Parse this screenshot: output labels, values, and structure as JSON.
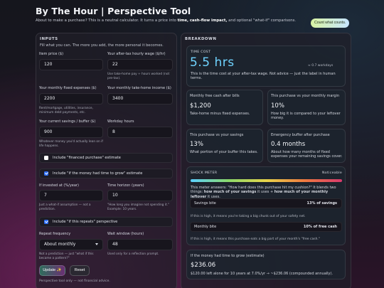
{
  "header": {
    "title": "By The Hour | Perspective Tool",
    "subtitle_pre": "About to make a purchase? This is a neutral calculator. It turns a price into ",
    "subtitle_bold": "time, cash-flow impact,",
    "subtitle_post": " and optional \"what-if\" comparisons.",
    "pill": "Count what counts."
  },
  "inputs": {
    "heading": "INPUTS",
    "intro": "Fill what you can. The more you add, the more personal it becomes.",
    "item_price": {
      "label": "Item price ($)",
      "value": "120"
    },
    "wage": {
      "label": "Your after-tax hourly wage ($/hr)",
      "value": "22",
      "hint": "Use take-home pay ÷ hours worked (not pre-tax)."
    },
    "fixed_expenses": {
      "label": "Your monthly fixed expenses ($)",
      "value": "2200",
      "hint": "Rent/mortgage, utilities, insurance, minimum debt payments, etc."
    },
    "take_home": {
      "label": "Your monthly take-home income ($)",
      "value": "3400"
    },
    "savings": {
      "label": "Your current savings / buffer ($)",
      "value": "900",
      "hint": "Whatever money you'd actually lean on if life happens."
    },
    "workday": {
      "label": "Workday hours",
      "value": "8"
    },
    "financed": {
      "label": "Include \"financed purchase\" estimate",
      "checked": false
    },
    "grow": {
      "label": "Include \"if the money had time to grow\" estimate",
      "checked": true
    },
    "invested": {
      "label": "If invested at (%/year)",
      "value": "7",
      "hint": "Just a what-if assumption — not a prediction."
    },
    "horizon": {
      "label": "Time horizon (years)",
      "value": "10",
      "hint": "\"How long you imagine not spending it.\" Example: 10 years."
    },
    "repeats": {
      "label": "Include \"if this repeats\" perspective",
      "checked": true
    },
    "repeat_freq": {
      "label": "Repeat frequency",
      "value": "About monthly",
      "hint": "Not a prediction — just \"what if this became a pattern?\""
    },
    "wait": {
      "label": "Wait window (hours)",
      "value": "48",
      "hint": "Used only for a reflection prompt."
    },
    "update_label": "Update ✨",
    "reset_label": "Reset",
    "footer": "Perspective tool only — not financial advice."
  },
  "breakdown": {
    "heading": "BREAKDOWN",
    "time_cost": {
      "caption": "TIME COST",
      "value": "5.5 hrs",
      "workdays": "≈ 0.7 workdays",
      "note": "This is the time cost at your after-tax wage. Not advice — just the label in human terms."
    },
    "cash_flow": {
      "caption": "Monthly free cash after bills",
      "value": "$1,200",
      "desc": "Take-home minus fixed expenses."
    },
    "margin": {
      "caption": "This purchase vs your monthly margin",
      "value": "10%",
      "desc": "How big it is compared to your leftover money."
    },
    "vs_savings": {
      "caption": "This purchase vs your savings",
      "value": "13%",
      "desc": "What portion of your buffer this takes."
    },
    "emergency": {
      "caption": "Emergency buffer after purchase",
      "value": "0.4 months",
      "desc": "About how many months of fixed expenses your remaining savings cover."
    },
    "shock": {
      "caption": "SHOCK METER",
      "status": "Noticeable",
      "level": 0.35,
      "desc_pre": "This meter answers: \"How hard does this purchase hit my cushion?\" It blends two things: ",
      "desc_b1": "how much of your savings",
      "desc_mid": " it uses + ",
      "desc_b2": "how much of your monthly leftover",
      "desc_post": " it uses.",
      "savings_bite": {
        "label": "Savings bite",
        "value": "13% of savings",
        "level": 0.13,
        "hint": "If this is high, it means you're taking a big chunk out of your safety net."
      },
      "monthly_bite": {
        "label": "Monthly bite",
        "value": "10% of free cash",
        "level": 0.1,
        "hint": "If this is high, it means this purchase eats a big part of your month's \"free cash.\""
      }
    },
    "grow": {
      "caption": "If the money had time to grow (estimate)",
      "value": "$236.06",
      "desc": "$120.00 left alone for 10 years at 7.0%/yr → ~$236.06 (compounded annually)."
    }
  },
  "colors": {
    "accent": "#6fd3ff",
    "checkbox": "#2d6df6"
  }
}
